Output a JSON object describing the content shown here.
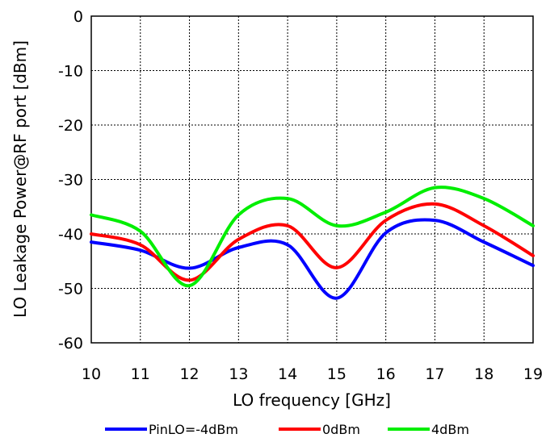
{
  "chart_data": {
    "type": "line",
    "xlabel": "LO frequency [GHz]",
    "ylabel": "LO Leakage Power@RF port [dBm]",
    "xlim": [
      10,
      19
    ],
    "ylim": [
      -60,
      0
    ],
    "x_ticks": [
      "10",
      "11",
      "12",
      "13",
      "14",
      "15",
      "16",
      "17",
      "18",
      "19"
    ],
    "y_ticks": [
      "0",
      "-10",
      "-20",
      "-30",
      "-40",
      "-50",
      "-60"
    ],
    "grid": true,
    "legend_position": "bottom",
    "x": [
      10,
      11,
      12,
      13,
      14,
      15,
      16,
      17,
      18,
      19
    ],
    "series": [
      {
        "name": "PinLO=-4dBm",
        "color": "#0000ff",
        "values": [
          -41.5,
          -43,
          -46.3,
          -42.5,
          -42,
          -51.8,
          -39.8,
          -37.5,
          -41.5,
          -45.8
        ]
      },
      {
        "name": "0dBm",
        "color": "#ff0000",
        "values": [
          -40,
          -42,
          -48.5,
          -41,
          -38.5,
          -46.2,
          -37.5,
          -34.5,
          -38.5,
          -44
        ]
      },
      {
        "name": "4dBm",
        "color": "#00ee00",
        "values": [
          -36.5,
          -39.5,
          -49.5,
          -36.5,
          -33.5,
          -38.5,
          -36,
          -31.5,
          -33.5,
          -38.5
        ]
      }
    ]
  }
}
